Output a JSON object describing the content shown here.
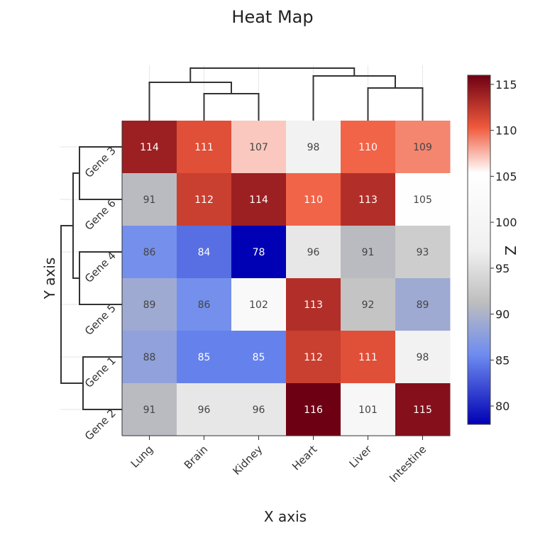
{
  "chart_data": {
    "type": "heatmap",
    "title": "Heat Map",
    "xlabel": "X axis",
    "ylabel": "Y axis",
    "colorbar_label": "Z",
    "x_categories": [
      "Lung",
      "Brain",
      "Kidney",
      "Heart",
      "Liver",
      "Intestine"
    ],
    "y_categories": [
      "Gene 3",
      "Gene 6",
      "Gene 4",
      "Gene 5",
      "Gene 1",
      "Gene 2"
    ],
    "z": [
      [
        114,
        111,
        107,
        98,
        110,
        109
      ],
      [
        91,
        112,
        114,
        110,
        113,
        105
      ],
      [
        86,
        84,
        78,
        96,
        91,
        93
      ],
      [
        89,
        86,
        102,
        113,
        92,
        89
      ],
      [
        88,
        85,
        85,
        112,
        111,
        98
      ],
      [
        91,
        96,
        96,
        116,
        101,
        115
      ]
    ],
    "zmin": 78,
    "zmax": 116,
    "colorbar_ticks": [
      80,
      85,
      90,
      95,
      100,
      105,
      110,
      115
    ],
    "colorscale": [
      [
        0.0,
        "#0000b4"
      ],
      [
        0.2,
        "#6e8cf0"
      ],
      [
        0.35,
        "#bebebe"
      ],
      [
        0.5,
        "#f0f0f0"
      ],
      [
        0.72,
        "#ffffff"
      ],
      [
        0.85,
        "#f05a3c"
      ],
      [
        1.0,
        "#6e0014"
      ]
    ],
    "column_dendrogram": "((Lung,(Brain,Kidney)),(Heart,(Liver,Intestine)))",
    "row_dendrogram": "(((Gene 3,Gene 6),(Gene 4,Gene 5)),(Gene 1,Gene 2))"
  }
}
